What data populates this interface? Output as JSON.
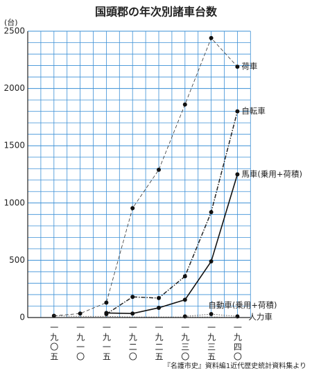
{
  "chart_data": {
    "type": "line",
    "title": "国頭郡の年次別諸車台数",
    "y_unit": "(台)",
    "source": "『名護市史』資料編1近代歴史統計資料集より",
    "categories": [
      "一九〇五",
      "一九一〇",
      "一九一五",
      "一九二〇",
      "一九二五",
      "一九三〇",
      "一九三五",
      "一九四〇"
    ],
    "series": [
      {
        "name": "荷車",
        "color": "#333333",
        "line_style": "dashed",
        "markers": true,
        "values": [
          15,
          35,
          130,
          955,
          1290,
          1860,
          2440,
          2190
        ]
      },
      {
        "name": "自転車",
        "color": "#222222",
        "line_style": "dashdot",
        "markers": true,
        "values": [
          null,
          null,
          30,
          180,
          170,
          360,
          920,
          1800
        ]
      },
      {
        "name": "馬車(乗用+荷積)",
        "color": "#111111",
        "line_style": "solid",
        "markers": true,
        "values": [
          null,
          null,
          40,
          35,
          85,
          155,
          490,
          1250
        ]
      },
      {
        "name": "自動車(乗用+荷積)",
        "color": "#444444",
        "line_style": "dotted",
        "markers": true,
        "values": [
          null,
          null,
          null,
          null,
          null,
          10,
          30,
          10
        ]
      },
      {
        "name": "人力車",
        "color": "#555555",
        "line_style": "dotted",
        "markers": false,
        "values": [
          15,
          10,
          10,
          5,
          5,
          5,
          5,
          3
        ]
      }
    ],
    "ylim": [
      0,
      2500
    ],
    "yticks": [
      0,
      500,
      1000,
      1500,
      2000,
      2500
    ],
    "grid": true,
    "grid_color": "#3a8fd6"
  }
}
